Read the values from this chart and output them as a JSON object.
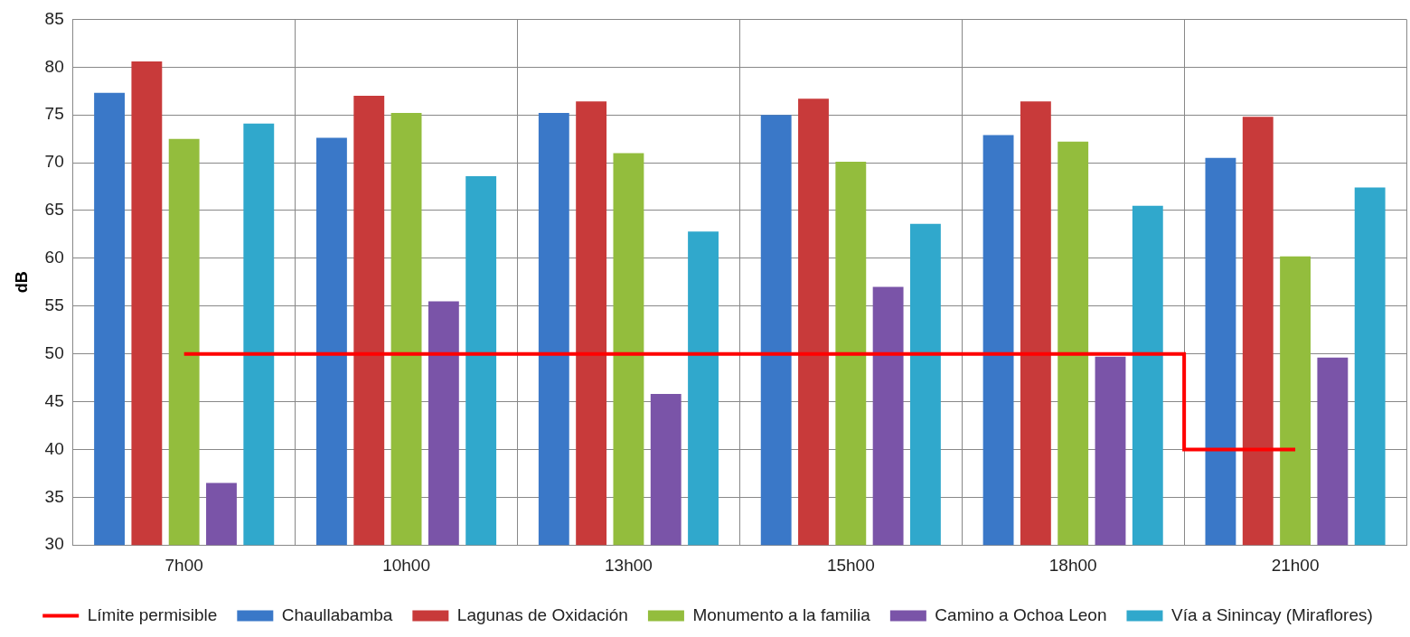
{
  "chart_data": {
    "type": "bar",
    "ylabel": "dB",
    "categories": [
      "7h00",
      "10h00",
      "13h00",
      "15h00",
      "18h00",
      "21h00"
    ],
    "series": [
      {
        "name": "Chaullabamba",
        "color": "#3a78c8",
        "values": [
          77.3,
          72.6,
          75.2,
          75.0,
          72.9,
          70.5
        ]
      },
      {
        "name": "Lagunas de Oxidación",
        "color": "#c83a3a",
        "values": [
          80.6,
          77.0,
          76.4,
          76.7,
          76.4,
          74.8
        ]
      },
      {
        "name": "Monumento a la familia",
        "color": "#93bd3d",
        "values": [
          72.5,
          75.2,
          71.0,
          70.1,
          72.2,
          60.2
        ]
      },
      {
        "name": "Camino a Ochoa Leon",
        "color": "#7a54a8",
        "values": [
          36.5,
          55.5,
          45.8,
          57.0,
          49.7,
          49.6
        ]
      },
      {
        "name": "Vía a Sinincay (Miraflores)",
        "color": "#30a8cc",
        "values": [
          74.1,
          68.6,
          62.8,
          63.6,
          65.5,
          67.4
        ]
      },
      {
        "name": "Límite permisible",
        "type": "step",
        "color": "#ff0000",
        "values": [
          50,
          50,
          50,
          50,
          50,
          40
        ]
      }
    ],
    "ylim": [
      30,
      85
    ],
    "yticks": [
      30,
      35,
      40,
      45,
      50,
      55,
      60,
      65,
      70,
      75,
      80,
      85
    ],
    "grid": true,
    "legend": "bottom"
  }
}
